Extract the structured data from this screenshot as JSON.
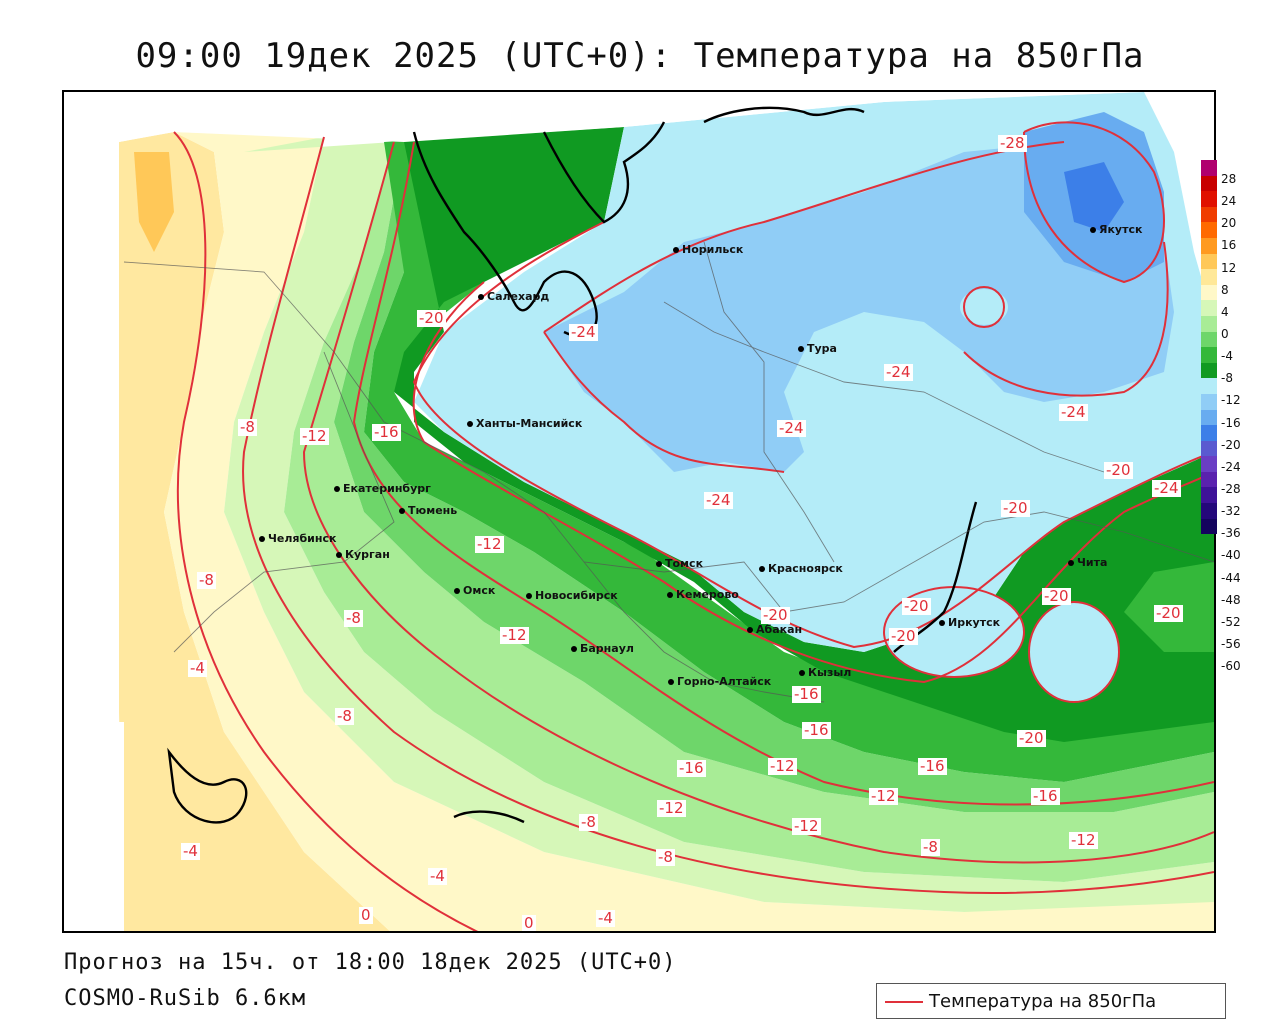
{
  "header": {
    "title": "09:00 19дек 2025 (UTC+0): Температура на 850гПа"
  },
  "footer": {
    "forecast": "Прогноз на 15ч. от 18:00 18дек 2025 (UTC+0)",
    "model": "COSMO-RuSib 6.6км"
  },
  "legend": {
    "label": "Температура на 850гПа",
    "line_color": "#e0303a"
  },
  "color_scale": {
    "labels": [
      "28",
      "24",
      "20",
      "16",
      "12",
      "8",
      "4",
      "0",
      "-4",
      "-8",
      "-12",
      "-16",
      "-20",
      "-24",
      "-28",
      "-32",
      "-36",
      "-40",
      "-44",
      "-48",
      "-52",
      "-56",
      "-60"
    ],
    "colors": [
      "#b0006e",
      "#c80000",
      "#e01000",
      "#f03c00",
      "#ff6a00",
      "#ff9a20",
      "#ffc858",
      "#ffe898",
      "#fff8c8",
      "#d6f7b8",
      "#a8ec96",
      "#6ed66a",
      "#34b83a",
      "#109a22",
      "#b4ecf8",
      "#90cdf6",
      "#68acf0",
      "#3c7fe8",
      "#5a5ad0",
      "#6a3ec4",
      "#5a22ae",
      "#3e1298",
      "#24087a",
      "#14045e"
    ]
  },
  "cities": [
    {
      "name": "Салехард"
    },
    {
      "name": "Норильск"
    },
    {
      "name": "Якутск"
    },
    {
      "name": "Тура"
    },
    {
      "name": "Ханты-Мансийск"
    },
    {
      "name": "Екатеринбург"
    },
    {
      "name": "Тюмень"
    },
    {
      "name": "Челябинск"
    },
    {
      "name": "Курган"
    },
    {
      "name": "Омск"
    },
    {
      "name": "Новосибирск"
    },
    {
      "name": "Томск"
    },
    {
      "name": "Кемерово"
    },
    {
      "name": "Красноярск"
    },
    {
      "name": "Абакан"
    },
    {
      "name": "Барнаул"
    },
    {
      "name": "Горно-Алтайск"
    },
    {
      "name": "Кызыл"
    },
    {
      "name": "Иркутск"
    },
    {
      "name": "Чита"
    }
  ],
  "isoline_labels": [
    "-28",
    "-20",
    "-24",
    "-24",
    "-24",
    "-24",
    "-24",
    "-24",
    "-20",
    "-20",
    "-20",
    "-20",
    "-20",
    "-20",
    "-20",
    "-20",
    "-16",
    "-16",
    "-16",
    "-16",
    "-16",
    "-16",
    "-12",
    "-12",
    "-12",
    "-12",
    "-12",
    "-12",
    "-12",
    "-12",
    "-8",
    "-8",
    "-8",
    "-8",
    "-8",
    "-8",
    "-8",
    "-4",
    "-4",
    "-4",
    "-4",
    "0",
    "0"
  ]
}
